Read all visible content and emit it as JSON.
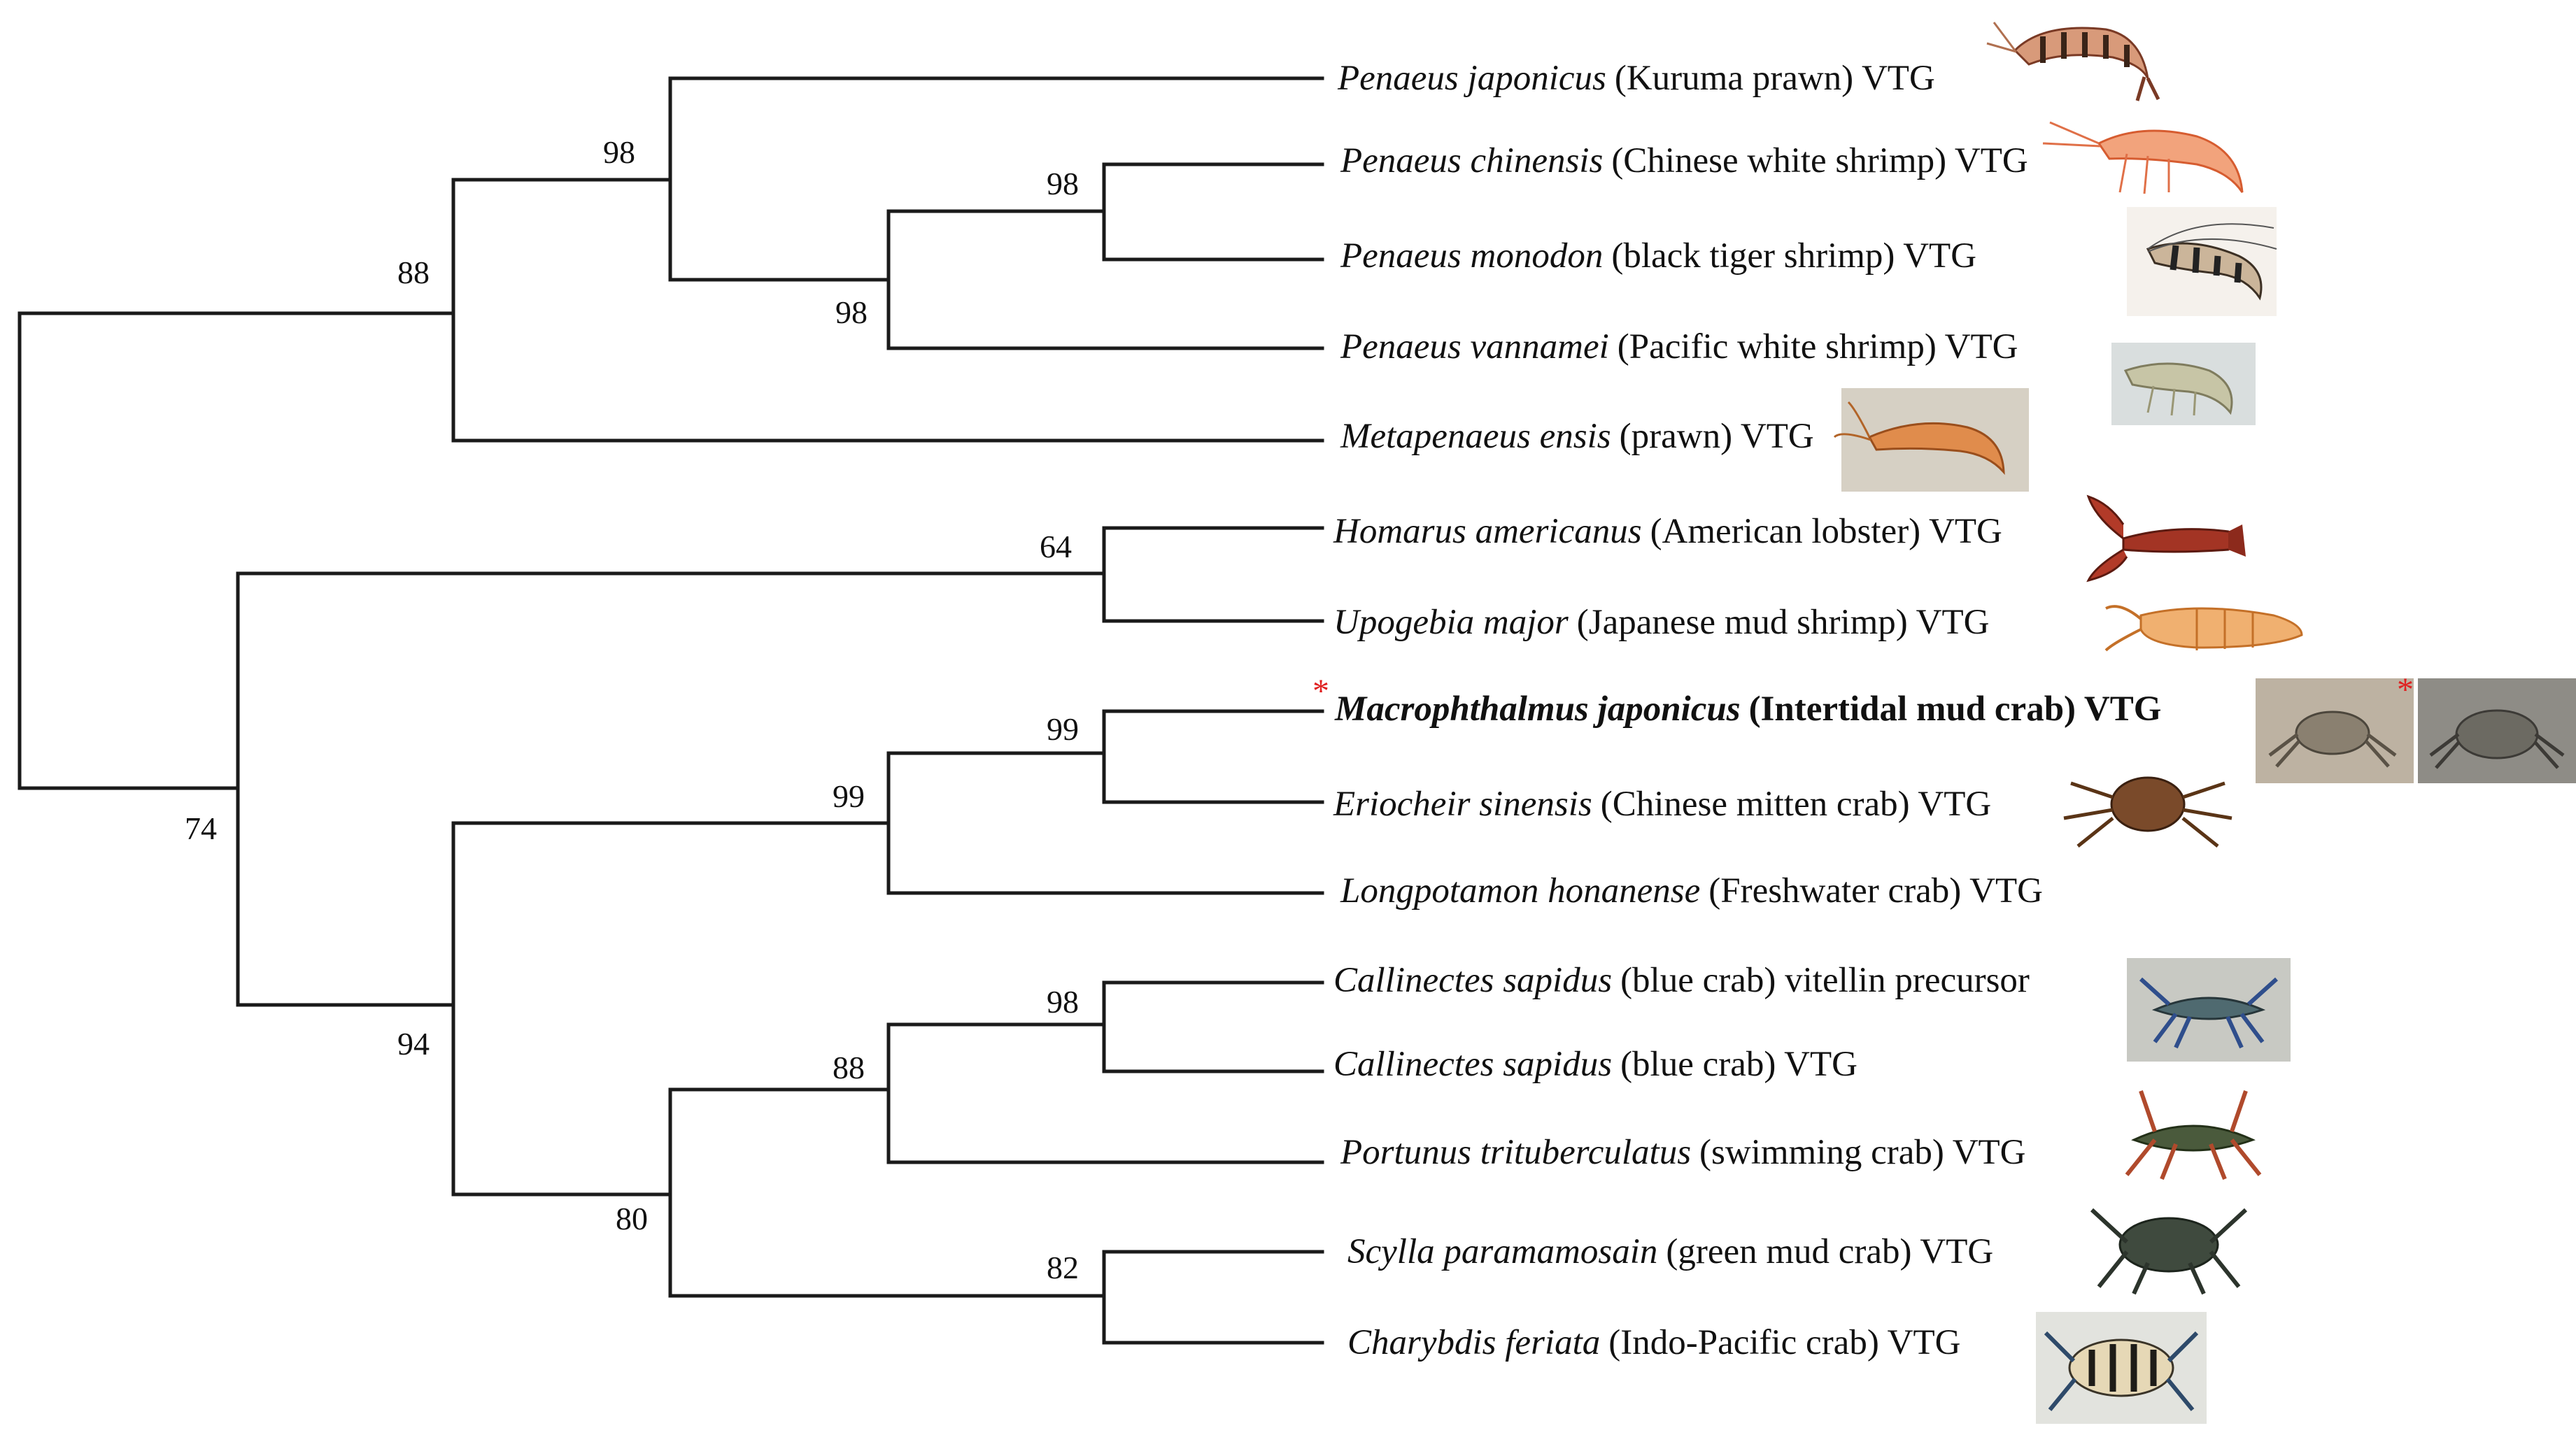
{
  "figure": {
    "type": "phylogenetic_tree",
    "branch_color": "#1a1a1a",
    "highlight_marker_color": "#e02020"
  },
  "taxa": [
    {
      "species": "Penaeus japonicus",
      "common": "(Kuruma prawn) VTG",
      "bold": false,
      "icon": "kuruma-prawn-photo"
    },
    {
      "species": "Penaeus chinensis",
      "common": "(Chinese white shrimp) VTG",
      "bold": false,
      "icon": "chinese-white-shrimp-photo"
    },
    {
      "species": "Penaeus monodon",
      "common": "(black tiger shrimp) VTG",
      "bold": false,
      "icon": "black-tiger-shrimp-photo"
    },
    {
      "species": "Penaeus vannamei",
      "common": "(Pacific white shrimp) VTG",
      "bold": false,
      "icon": "pacific-white-shrimp-photo"
    },
    {
      "species": "Metapenaeus ensis",
      "common": "(prawn) VTG",
      "bold": false,
      "icon": "prawn-photo"
    },
    {
      "species": "Homarus americanus",
      "common": "(American  lobster) VTG",
      "bold": false,
      "icon": "american-lobster-photo"
    },
    {
      "species": "Upogebia major",
      "common": "(Japanese  mud shrimp) VTG",
      "bold": false,
      "icon": "japanese-mud-shrimp-photo"
    },
    {
      "species": "Macrophthalmus japonicus",
      "common": "(Intertidal  mud crab) VTG",
      "bold": true,
      "marker": "*",
      "icon": "intertidal-mud-crab-photo"
    },
    {
      "species": "Eriocheir sinensis",
      "common": "(Chinese mitten crab) VTG",
      "bold": false,
      "icon": "chinese-mitten-crab-photo"
    },
    {
      "species": "Longpotamon honanense",
      "common": "(Freshwater  crab) VTG",
      "bold": false
    },
    {
      "species": "Callinectes sapidus",
      "common": "(blue crab) vitellin precursor",
      "bold": false,
      "icon": "blue-crab-photo"
    },
    {
      "species": "Callinectes sapidus",
      "common": "(blue crab) VTG",
      "bold": false
    },
    {
      "species": "Portunus trituberculatus",
      "common": "(swimming crab) VTG",
      "bold": false,
      "icon": "swimming-crab-photo"
    },
    {
      "species": "Scylla paramamosain",
      "common": "(green mud crab) VTG",
      "bold": false,
      "icon": "green-mud-crab-photo"
    },
    {
      "species": "Charybdis feriata",
      "common": "(Indo-Pacific crab) VTG",
      "bold": false,
      "icon": "indo-pacific-crab-photo"
    }
  ],
  "support_values": {
    "n_shrimp_clade": "88",
    "n_penaeus": "98",
    "n_chinensis_monodon_vannamei": "98",
    "n_chinensis_monodon": "98",
    "n_root_second": "74",
    "n_lobster_mudshrimp": "64",
    "n_crab_clade": "94",
    "n_grapsoid": "99",
    "n_macro_eriocheir": "99",
    "n_portunid": "80",
    "n_callinectes_portunus": "88",
    "n_callinectes": "98",
    "n_scylla_charybdis": "82"
  },
  "photo_marker": "*"
}
